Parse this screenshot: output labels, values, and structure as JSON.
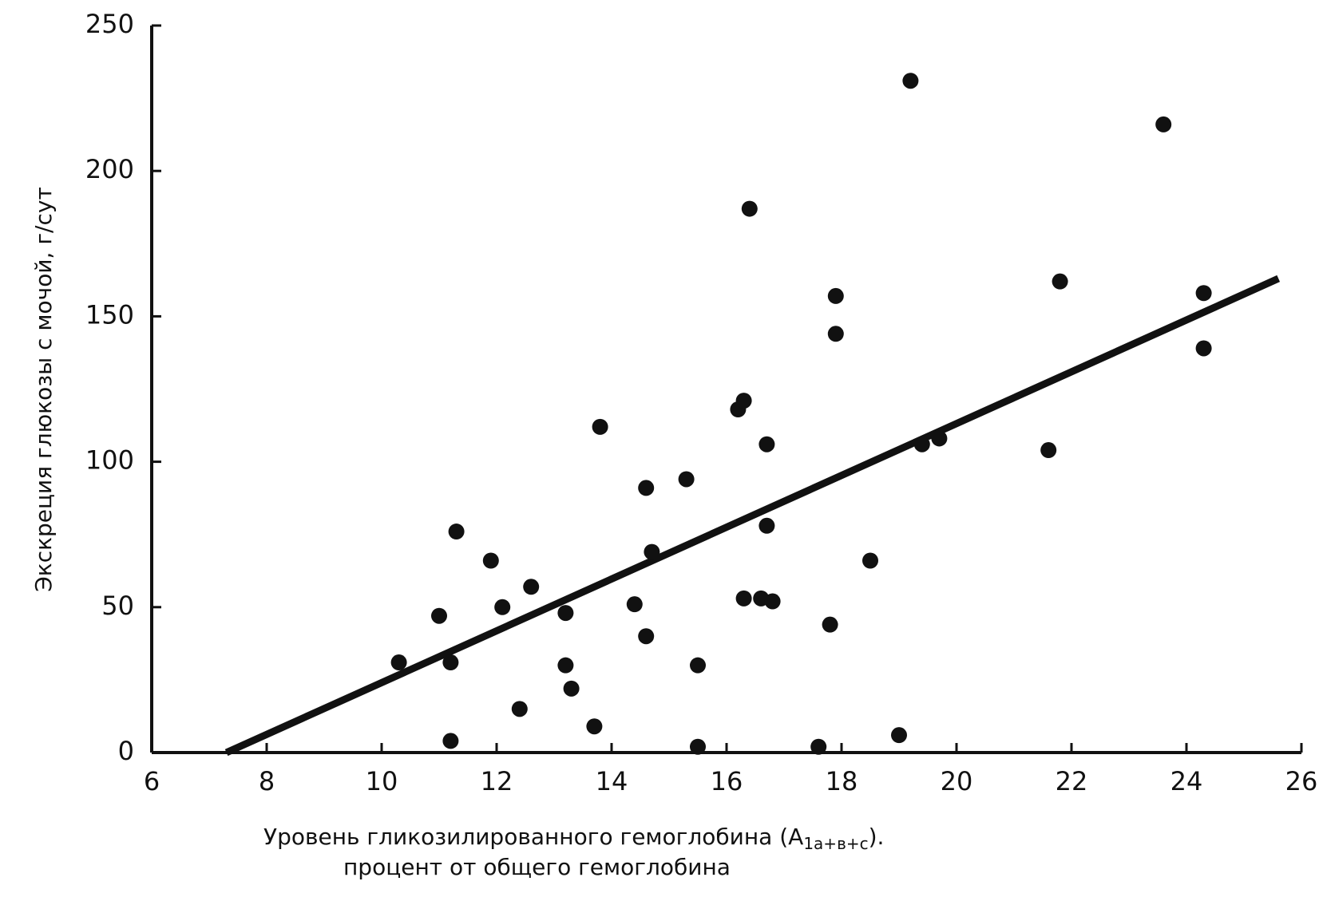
{
  "chart_data": {
    "type": "scatter",
    "ylabel": "Экскреция глюкозы с мочой, г/сут",
    "xlabel": {
      "text": "Уровень гликозилированного  гемоглобина (A",
      "subscript": "1a+в+с",
      "suffix": ")."
    },
    "xlabel_line2": "процент от общего гемоглобина",
    "xlim": [
      6,
      26
    ],
    "xticks": [
      6,
      8,
      10,
      12,
      14,
      16,
      18,
      20,
      22,
      24,
      26
    ],
    "ylim": [
      0,
      250
    ],
    "yticks": [
      0,
      50,
      100,
      150,
      200,
      250
    ],
    "series": [
      {
        "color": "#111111",
        "x": [
          10.3,
          11.0,
          11.2,
          11.2,
          11.3,
          11.9,
          12.1,
          12.4,
          12.6,
          13.2,
          13.2,
          13.3,
          13.7,
          13.8,
          14.4,
          14.6,
          14.6,
          14.7,
          15.3,
          15.5,
          15.5,
          16.2,
          16.3,
          16.3,
          16.4,
          16.6,
          16.7,
          16.7,
          16.8,
          17.6,
          17.8,
          17.9,
          17.9,
          18.5,
          19.0,
          19.2,
          19.4,
          19.7,
          21.6,
          21.8,
          23.6,
          24.3,
          24.3
        ],
        "values": [
          31,
          47,
          31,
          4,
          76,
          66,
          50,
          15,
          57,
          30,
          48,
          22,
          9,
          112,
          51,
          40,
          91,
          69,
          94,
          2,
          30,
          118,
          53,
          121,
          187,
          53,
          106,
          78,
          52,
          2,
          44,
          157,
          144,
          66,
          6,
          231,
          106,
          108,
          104,
          162,
          216,
          139,
          158
        ]
      }
    ],
    "fit_line": {
      "color": "#111111",
      "x": [
        7.3,
        25.6
      ],
      "values": [
        0,
        163
      ]
    }
  }
}
